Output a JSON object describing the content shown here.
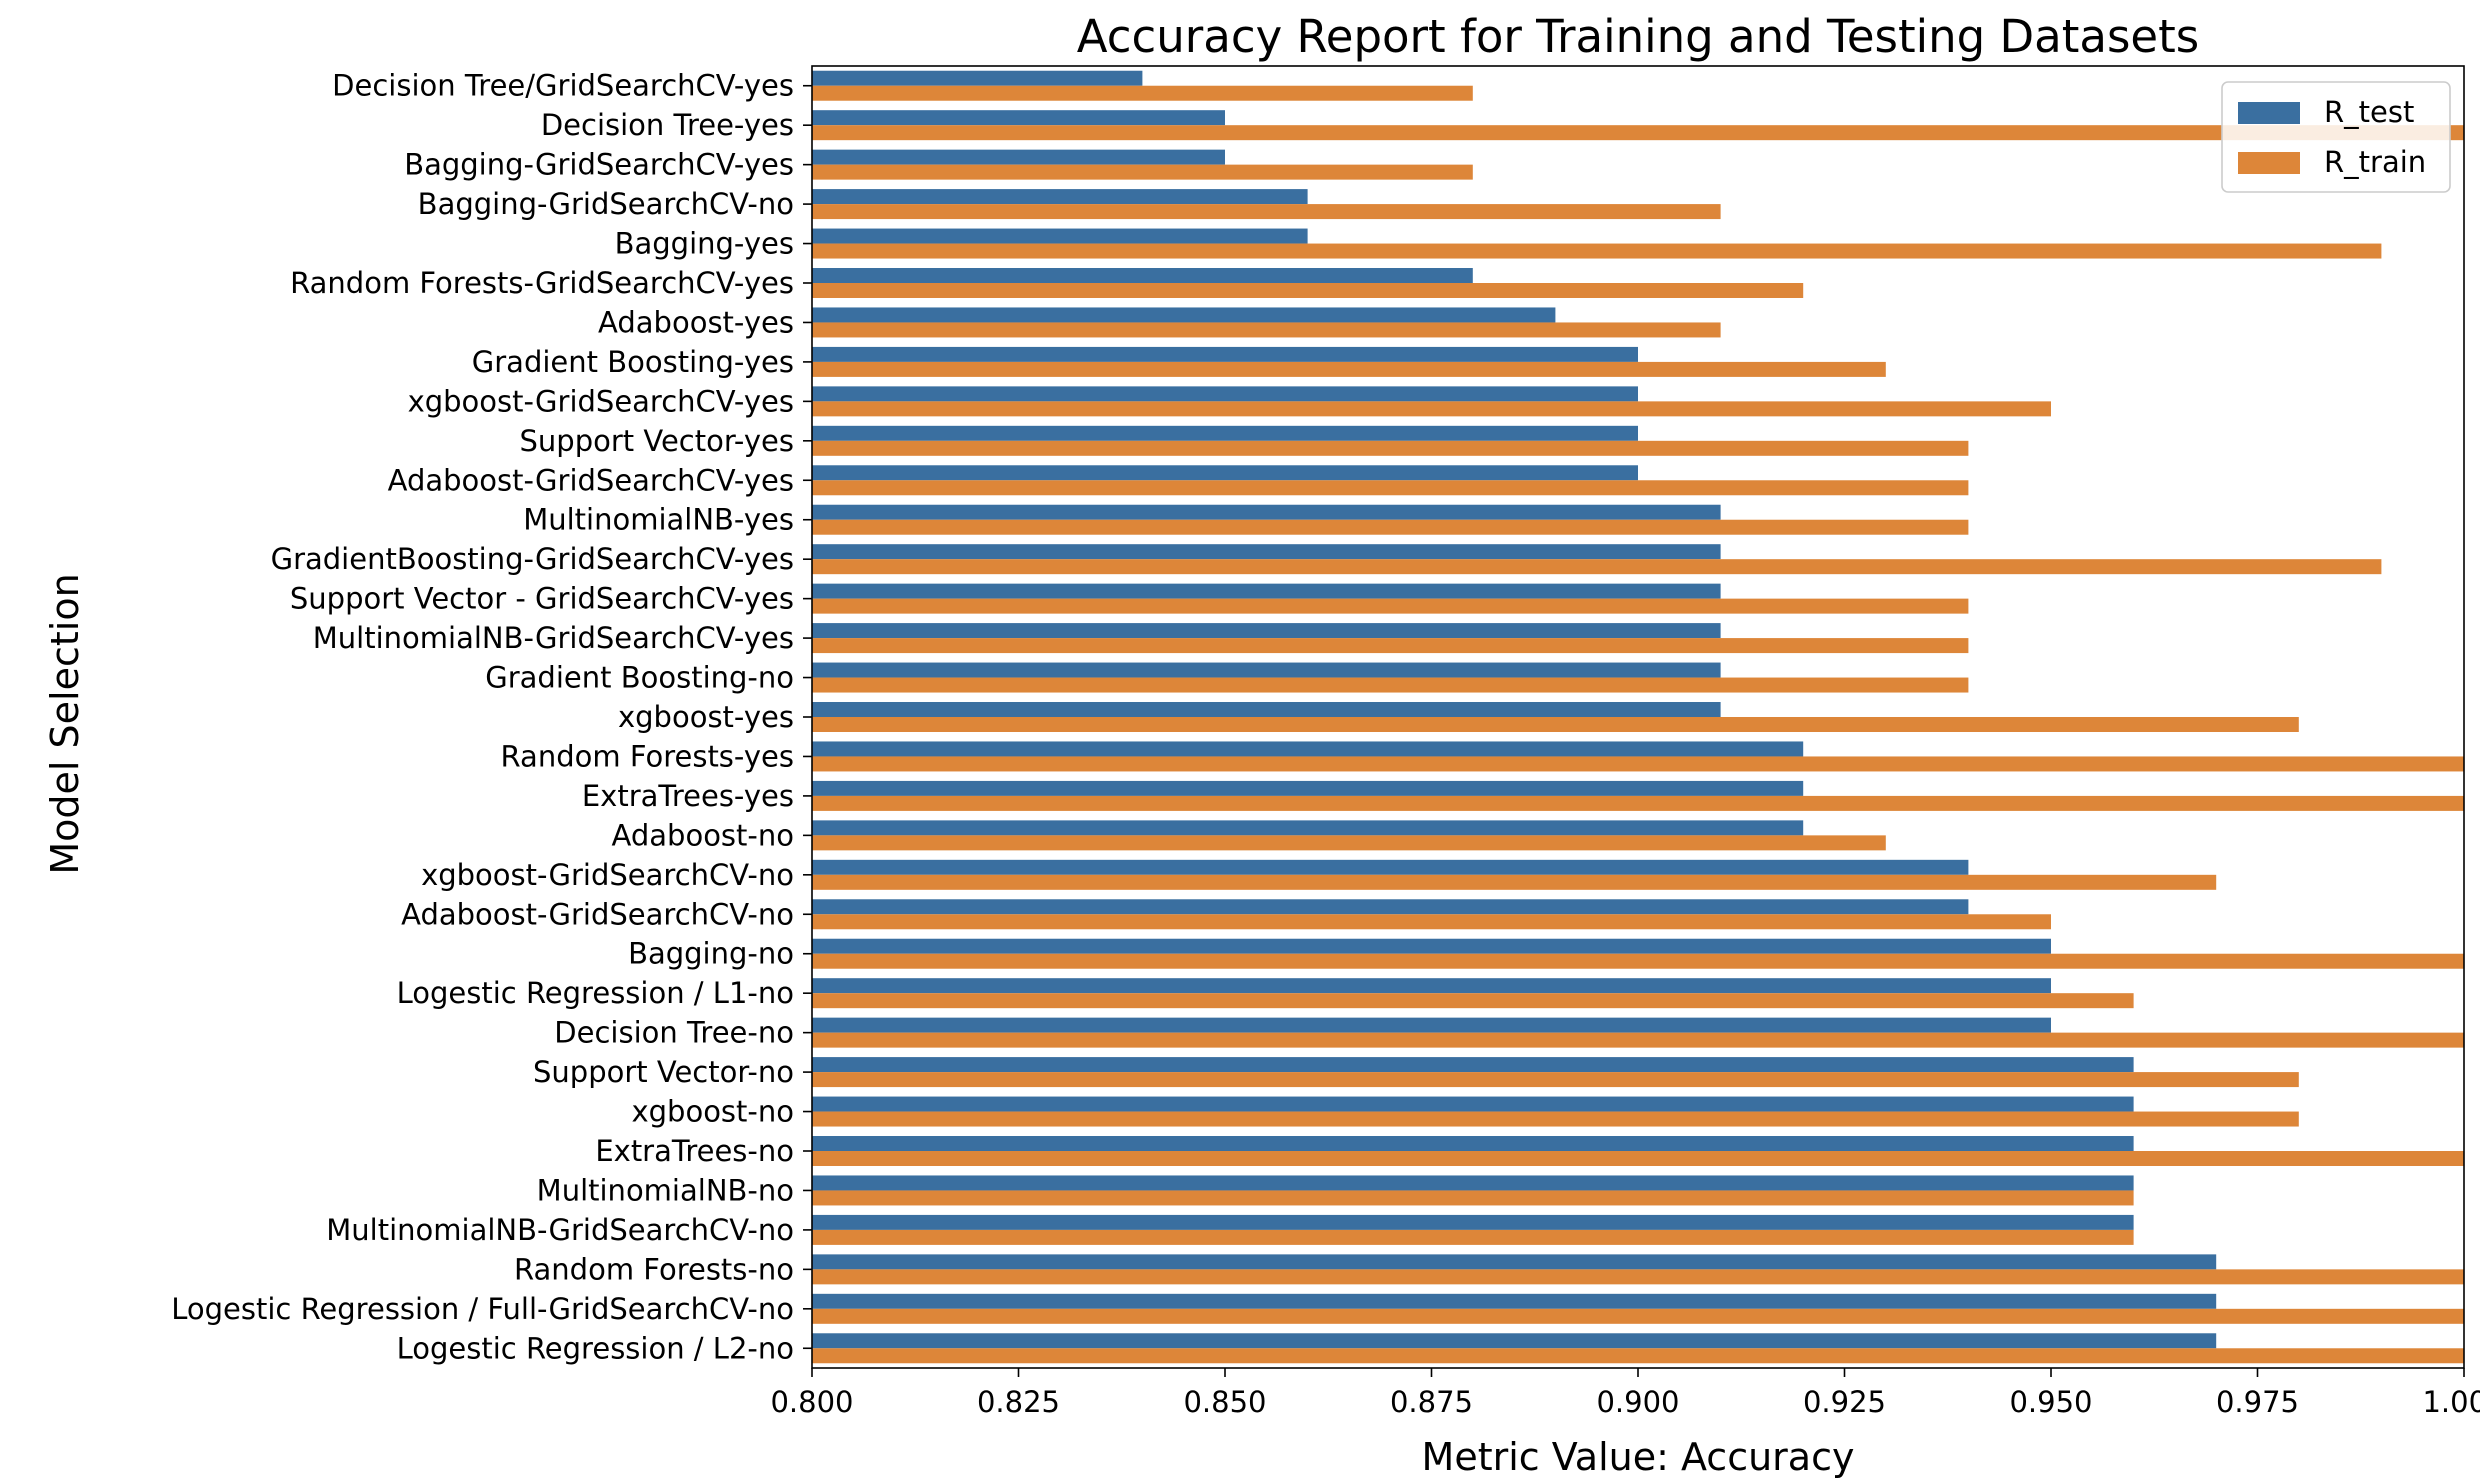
{
  "chart_data": {
    "type": "bar",
    "orientation": "horizontal",
    "title": "Accuracy Report for Training and Testing Datasets",
    "xlabel": "Metric Value: Accuracy",
    "ylabel": "Model Selection",
    "xlim": [
      0.8,
      1.0
    ],
    "xticks": [
      "0.800",
      "0.825",
      "0.850",
      "0.875",
      "0.900",
      "0.925",
      "0.950",
      "0.975",
      "1.000"
    ],
    "grid": false,
    "legend_position": "top-right",
    "categories": [
      "Decision Tree/GridSearchCV-yes",
      "Decision Tree-yes",
      "Bagging-GridSearchCV-yes",
      "Bagging-GridSearchCV-no",
      "Bagging-yes",
      "Random Forests-GridSearchCV-yes",
      "Adaboost-yes",
      "Gradient Boosting-yes",
      "xgboost-GridSearchCV-yes",
      "Support Vector-yes",
      "Adaboost-GridSearchCV-yes",
      "MultinomialNB-yes",
      "GradientBoosting-GridSearchCV-yes",
      "Support Vector - GridSearchCV-yes",
      "MultinomialNB-GridSearchCV-yes",
      "Gradient Boosting-no",
      "xgboost-yes",
      "Random Forests-yes",
      "ExtraTrees-yes",
      "Adaboost-no",
      "xgboost-GridSearchCV-no",
      "Adaboost-GridSearchCV-no",
      "Bagging-no",
      "Logestic  Regression / L1-no",
      "Decision Tree-no",
      "Support Vector-no",
      "xgboost-no",
      "ExtraTrees-no",
      "MultinomialNB-no",
      "MultinomialNB-GridSearchCV-no",
      "Random Forests-no",
      "Logestic  Regression / Full-GridSearchCV-no",
      "Logestic  Regression / L2-no"
    ],
    "series": [
      {
        "name": "R_test",
        "color": "#3a6fa0",
        "values": [
          0.84,
          0.85,
          0.85,
          0.86,
          0.86,
          0.88,
          0.89,
          0.9,
          0.9,
          0.9,
          0.9,
          0.91,
          0.91,
          0.91,
          0.91,
          0.91,
          0.91,
          0.92,
          0.92,
          0.92,
          0.94,
          0.94,
          0.95,
          0.95,
          0.95,
          0.96,
          0.96,
          0.96,
          0.96,
          0.96,
          0.97,
          0.97,
          0.97
        ]
      },
      {
        "name": "R_train",
        "color": "#dd8639",
        "values": [
          0.88,
          1.0,
          0.88,
          0.91,
          0.99,
          0.92,
          0.91,
          0.93,
          0.95,
          0.94,
          0.94,
          0.94,
          0.99,
          0.94,
          0.94,
          0.94,
          0.98,
          1.0,
          1.0,
          0.93,
          0.97,
          0.95,
          1.0,
          0.96,
          1.0,
          0.98,
          0.98,
          1.0,
          0.96,
          0.96,
          1.0,
          1.0,
          1.0
        ]
      }
    ]
  }
}
